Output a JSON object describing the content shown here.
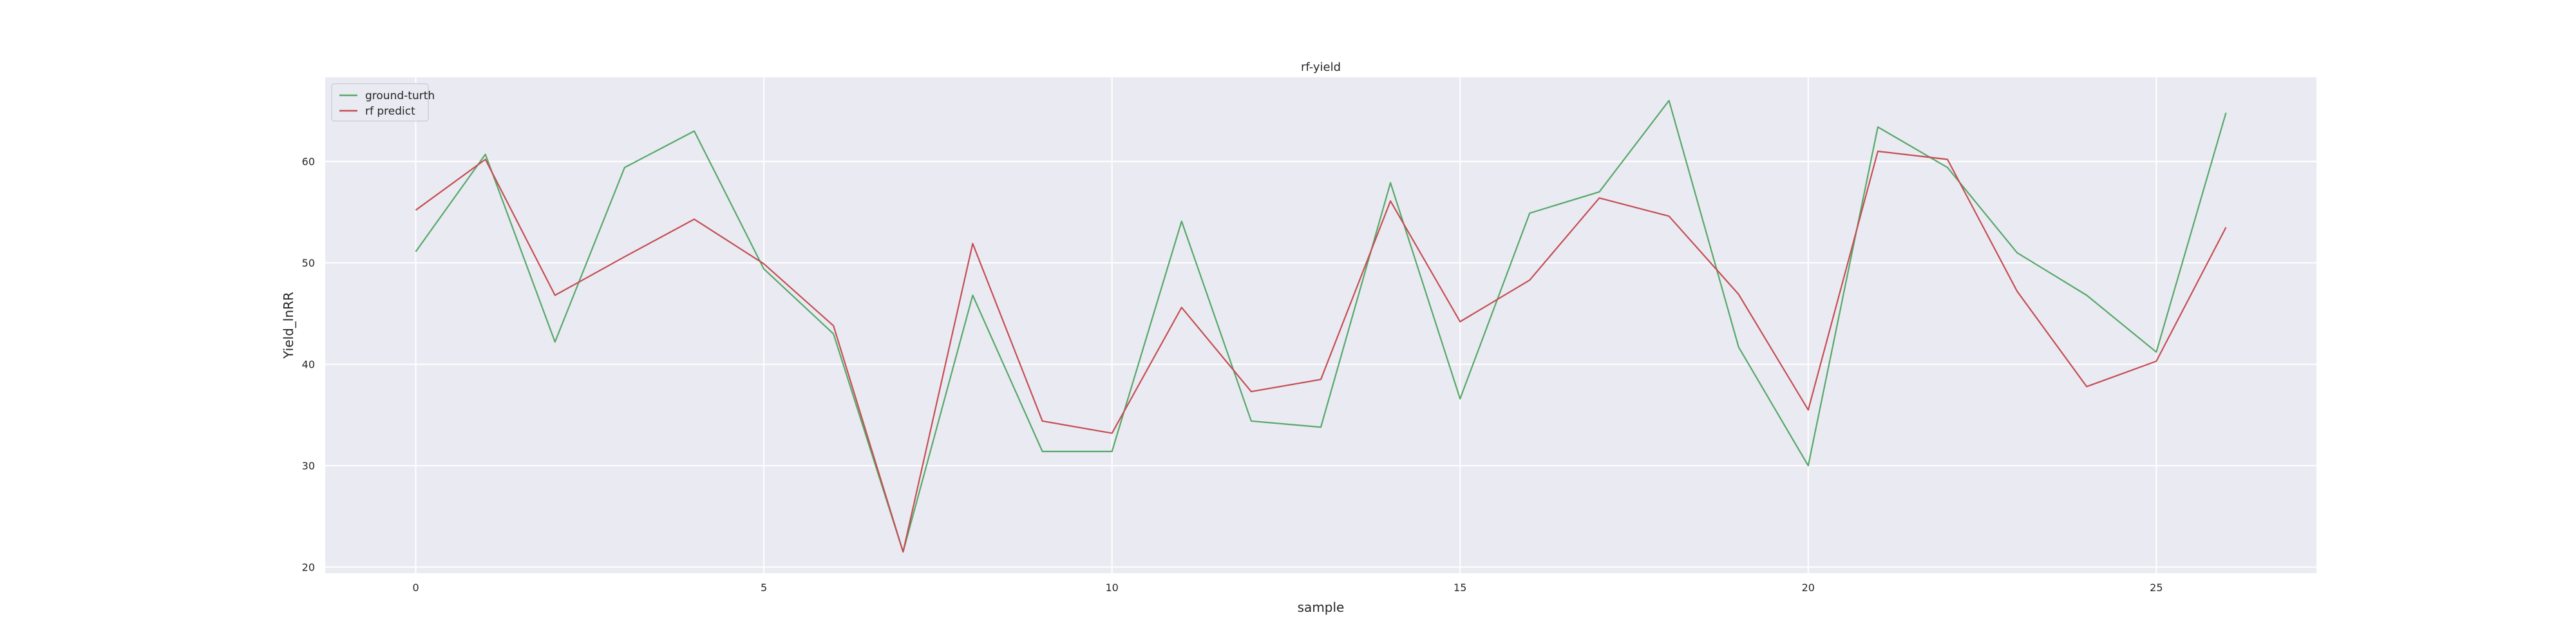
{
  "chart_data": {
    "type": "line",
    "title": "rf-yield",
    "xlabel": "sample",
    "ylabel": "Yield_lnRR",
    "xlim": [
      -1.3,
      27.3
    ],
    "ylim": [
      19.4,
      68.3
    ],
    "x_ticks": [
      0,
      5,
      10,
      15,
      20,
      25
    ],
    "y_ticks": [
      20,
      30,
      40,
      50,
      60
    ],
    "grid": true,
    "legend_position": "top-left",
    "x": [
      0,
      1,
      2,
      3,
      4,
      5,
      6,
      7,
      8,
      9,
      10,
      11,
      12,
      13,
      14,
      15,
      16,
      17,
      18,
      19,
      20,
      21,
      22,
      23,
      24,
      25,
      26
    ],
    "series": [
      {
        "name": "ground-turth",
        "color": "#55a868",
        "values": [
          51.1,
          60.7,
          42.2,
          59.4,
          63.0,
          49.4,
          43.0,
          21.5,
          46.8,
          31.4,
          31.4,
          54.1,
          34.4,
          33.8,
          57.9,
          36.6,
          54.9,
          57.0,
          66.0,
          41.7,
          30.0,
          63.4,
          59.4,
          51.0,
          46.8,
          41.2,
          64.8
        ]
      },
      {
        "name": "rf predict",
        "color": "#c44e52",
        "values": [
          55.2,
          60.2,
          46.8,
          50.6,
          54.3,
          49.9,
          43.8,
          21.5,
          51.9,
          34.4,
          33.2,
          45.6,
          37.3,
          38.5,
          56.1,
          44.2,
          48.3,
          56.4,
          54.6,
          46.9,
          35.5,
          61.0,
          60.2,
          47.2,
          37.8,
          40.3,
          53.5
        ]
      }
    ]
  },
  "colors": {
    "plot_background": "#eaeaf2",
    "grid": "#ffffff",
    "text": "#262626"
  }
}
